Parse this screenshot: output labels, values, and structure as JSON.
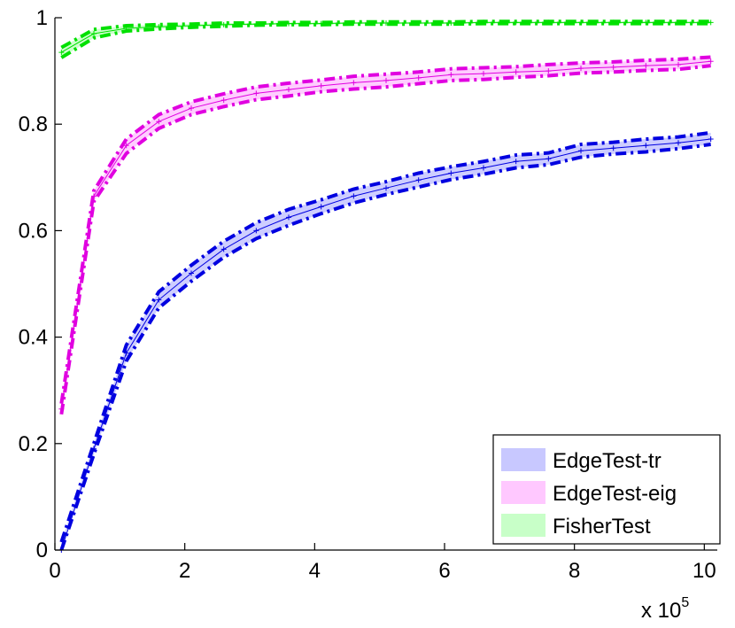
{
  "chart_data": {
    "type": "line",
    "title": "",
    "xlabel": "",
    "ylabel": "",
    "xlim": [
      0,
      1020000
    ],
    "ylim": [
      0,
      1
    ],
    "x_multiplier_label": "x 10",
    "x_multiplier_exponent": "5",
    "xticks": [
      0,
      200000,
      400000,
      600000,
      800000,
      1000000
    ],
    "xtick_labels": [
      "0",
      "2",
      "4",
      "6",
      "8",
      "10"
    ],
    "yticks": [
      0,
      0.2,
      0.4,
      0.6,
      0.8,
      1
    ],
    "ytick_labels": [
      "0",
      "0.2",
      "0.4",
      "0.6",
      "0.8",
      "1"
    ],
    "grid": false,
    "legend_position": "bottom-right",
    "x": [
      10000,
      60000,
      110000,
      160000,
      210000,
      260000,
      310000,
      360000,
      410000,
      460000,
      510000,
      560000,
      610000,
      660000,
      710000,
      760000,
      810000,
      860000,
      910000,
      960000,
      1010000
    ],
    "series": [
      {
        "name": "EdgeTest-tr",
        "color": "#0000e0",
        "fill": "#c8c8ff",
        "values": [
          0.0,
          0.19,
          0.37,
          0.47,
          0.52,
          0.565,
          0.6,
          0.625,
          0.645,
          0.665,
          0.68,
          0.695,
          0.708,
          0.718,
          0.73,
          0.735,
          0.75,
          0.755,
          0.76,
          0.765,
          0.772
        ],
        "lower": [
          0.0,
          0.18,
          0.355,
          0.455,
          0.505,
          0.55,
          0.585,
          0.61,
          0.632,
          0.652,
          0.668,
          0.682,
          0.696,
          0.706,
          0.718,
          0.724,
          0.738,
          0.744,
          0.748,
          0.754,
          0.762
        ],
        "upper": [
          0.015,
          0.2,
          0.385,
          0.485,
          0.535,
          0.58,
          0.615,
          0.64,
          0.658,
          0.678,
          0.692,
          0.708,
          0.72,
          0.73,
          0.742,
          0.746,
          0.762,
          0.766,
          0.772,
          0.776,
          0.784
        ]
      },
      {
        "name": "EdgeTest-eig",
        "color": "#e000e0",
        "fill": "#ffc8ff",
        "values": [
          0.265,
          0.665,
          0.76,
          0.805,
          0.83,
          0.845,
          0.858,
          0.865,
          0.872,
          0.878,
          0.882,
          0.887,
          0.893,
          0.895,
          0.898,
          0.9,
          0.905,
          0.907,
          0.91,
          0.912,
          0.918
        ],
        "lower": [
          0.255,
          0.655,
          0.745,
          0.792,
          0.818,
          0.833,
          0.846,
          0.853,
          0.861,
          0.866,
          0.87,
          0.876,
          0.882,
          0.884,
          0.888,
          0.891,
          0.896,
          0.898,
          0.901,
          0.903,
          0.91
        ],
        "upper": [
          0.275,
          0.675,
          0.772,
          0.818,
          0.842,
          0.857,
          0.87,
          0.877,
          0.883,
          0.89,
          0.894,
          0.898,
          0.904,
          0.906,
          0.908,
          0.912,
          0.915,
          0.917,
          0.92,
          0.922,
          0.926
        ]
      },
      {
        "name": "FisherTest",
        "color": "#00e000",
        "fill": "#c8ffc8",
        "values": [
          0.935,
          0.97,
          0.98,
          0.983,
          0.985,
          0.987,
          0.988,
          0.989,
          0.989,
          0.99,
          0.99,
          0.99,
          0.99,
          0.991,
          0.991,
          0.991,
          0.991,
          0.991,
          0.991,
          0.991,
          0.991
        ],
        "lower": [
          0.925,
          0.962,
          0.975,
          0.979,
          0.982,
          0.984,
          0.986,
          0.987,
          0.987,
          0.988,
          0.988,
          0.988,
          0.988,
          0.989,
          0.989,
          0.989,
          0.989,
          0.989,
          0.989,
          0.989,
          0.989
        ],
        "upper": [
          0.944,
          0.978,
          0.985,
          0.987,
          0.988,
          0.99,
          0.99,
          0.991,
          0.991,
          0.992,
          0.992,
          0.992,
          0.992,
          0.993,
          0.993,
          0.993,
          0.993,
          0.993,
          0.993,
          0.993,
          0.993
        ]
      }
    ]
  }
}
